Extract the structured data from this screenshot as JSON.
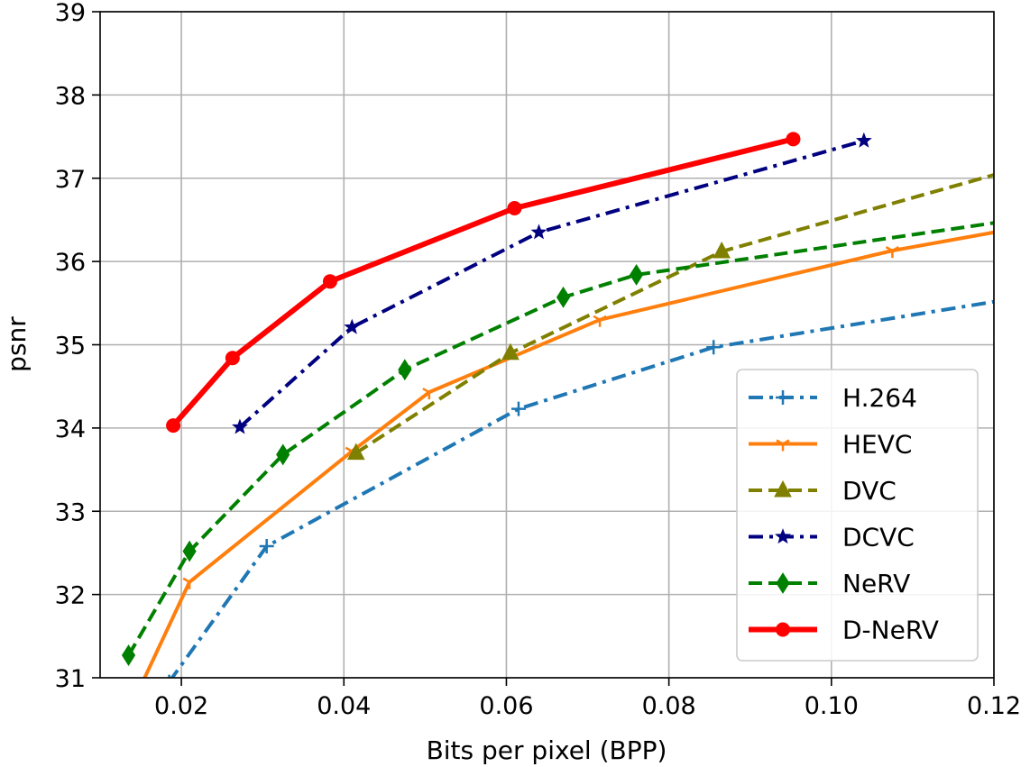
{
  "chart_data": {
    "type": "line",
    "title": "",
    "xlabel": "Bits per pixel (BPP)",
    "ylabel": "psnr",
    "xlim": [
      0.01,
      0.12
    ],
    "ylim": [
      31,
      39
    ],
    "x_ticks": [
      0.02,
      0.04,
      0.06,
      0.08,
      0.1,
      0.12
    ],
    "x_tick_labels": [
      "0.02",
      "0.04",
      "0.06",
      "0.08",
      "0.10",
      "0.12"
    ],
    "y_ticks": [
      31,
      32,
      33,
      34,
      35,
      36,
      37,
      38,
      39
    ],
    "y_tick_labels": [
      "31",
      "32",
      "33",
      "34",
      "35",
      "36",
      "37",
      "38",
      "39"
    ],
    "grid": true,
    "legend_position": "bottom-right",
    "series": [
      {
        "name": "H.264",
        "color": "#1f77b4",
        "linestyle": "dashdot",
        "marker": "plus",
        "points": [
          [
            0.0185,
            30.95
          ],
          [
            0.0305,
            32.58
          ],
          [
            0.0615,
            34.23
          ],
          [
            0.0855,
            34.97
          ],
          [
            0.124,
            35.58
          ]
        ]
      },
      {
        "name": "HEVC",
        "color": "#ff7f0e",
        "linestyle": "solid",
        "marker": "tri-down",
        "points": [
          [
            0.015,
            30.9
          ],
          [
            0.021,
            32.15
          ],
          [
            0.041,
            33.72
          ],
          [
            0.0505,
            34.43
          ],
          [
            0.0715,
            35.3
          ],
          [
            0.1075,
            36.13
          ],
          [
            0.124,
            36.42
          ]
        ]
      },
      {
        "name": "DVC",
        "color": "#808000",
        "linestyle": "dashed",
        "marker": "triangle",
        "points": [
          [
            0.0415,
            33.7
          ],
          [
            0.0605,
            34.9
          ],
          [
            0.0865,
            36.12
          ],
          [
            0.124,
            37.15
          ]
        ]
      },
      {
        "name": "DCVC",
        "color": "#000080",
        "linestyle": "dashdot",
        "marker": "star",
        "points": [
          [
            0.0272,
            34.01
          ],
          [
            0.041,
            35.21
          ],
          [
            0.064,
            36.35
          ],
          [
            0.104,
            37.45
          ]
        ]
      },
      {
        "name": "NeRV",
        "color": "#008000",
        "linestyle": "dashed",
        "marker": "thin-diamond",
        "points": [
          [
            0.0135,
            31.27
          ],
          [
            0.021,
            32.52
          ],
          [
            0.0325,
            33.68
          ],
          [
            0.0475,
            34.7
          ],
          [
            0.067,
            35.57
          ],
          [
            0.076,
            35.84
          ],
          [
            0.124,
            36.52
          ]
        ]
      },
      {
        "name": "D-NeRV",
        "color": "#ff0000",
        "linestyle": "solid-thick",
        "marker": "circle",
        "points": [
          [
            0.019,
            34.03
          ],
          [
            0.0263,
            34.84
          ],
          [
            0.0383,
            35.76
          ],
          [
            0.061,
            36.64
          ],
          [
            0.0953,
            37.47
          ]
        ]
      }
    ]
  }
}
